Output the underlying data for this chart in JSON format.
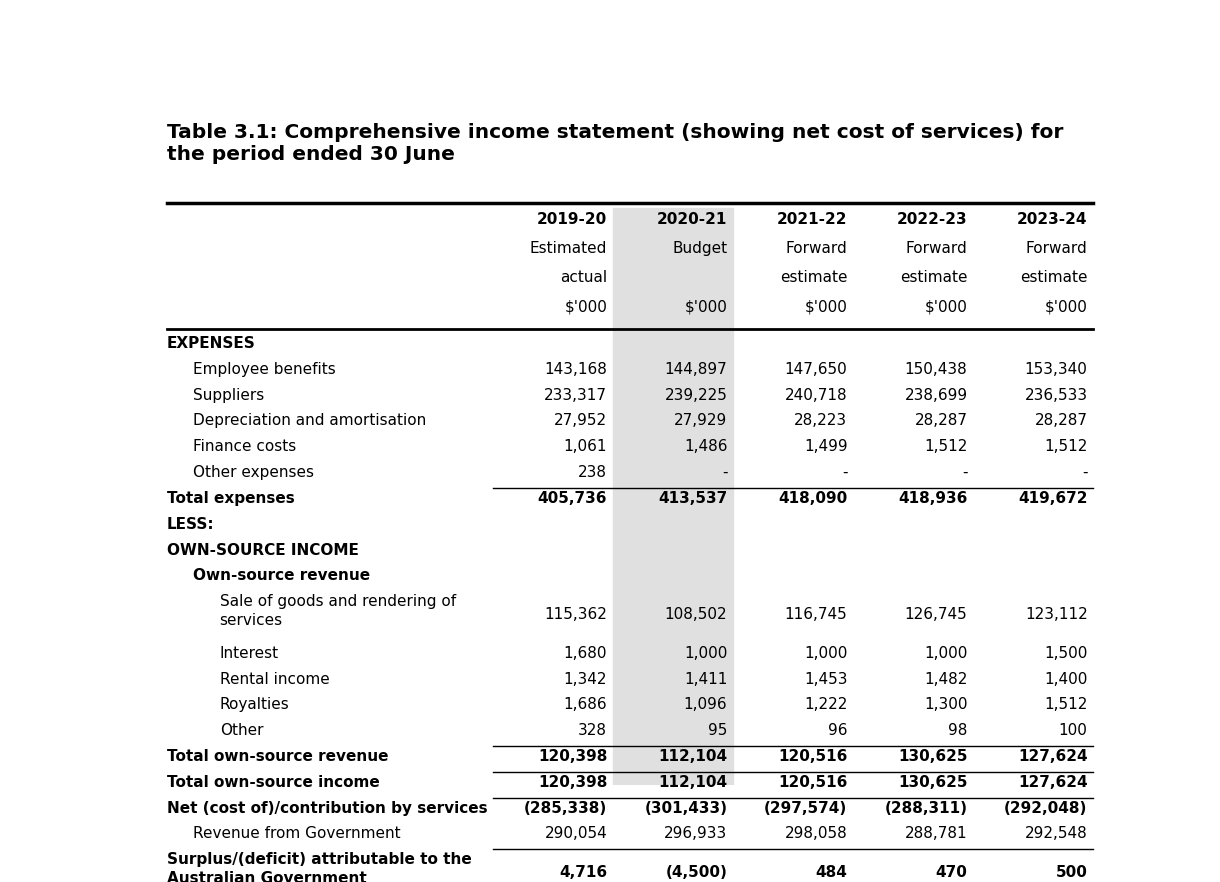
{
  "title": "Table 3.1: Comprehensive income statement (showing net cost of services) for\nthe period ended 30 June",
  "col_headers": [
    [
      "2019-20",
      "2020-21",
      "2021-22",
      "2022-23",
      "2023-24"
    ],
    [
      "Estimated",
      "Budget",
      "Forward",
      "Forward",
      "Forward"
    ],
    [
      "actual",
      "",
      "estimate",
      "estimate",
      "estimate"
    ],
    [
      "$'000",
      "$'000",
      "$'000",
      "$'000",
      "$'000"
    ]
  ],
  "rows": [
    {
      "label": "EXPENSES",
      "values": [
        "",
        "",
        "",
        "",
        ""
      ],
      "style": "bold",
      "indent": 0
    },
    {
      "label": "Employee benefits",
      "values": [
        "143,168",
        "144,897",
        "147,650",
        "150,438",
        "153,340"
      ],
      "style": "normal",
      "indent": 1
    },
    {
      "label": "Suppliers",
      "values": [
        "233,317",
        "239,225",
        "240,718",
        "238,699",
        "236,533"
      ],
      "style": "normal",
      "indent": 1
    },
    {
      "label": "Depreciation and amortisation",
      "values": [
        "27,952",
        "27,929",
        "28,223",
        "28,287",
        "28,287"
      ],
      "style": "normal",
      "indent": 1
    },
    {
      "label": "Finance costs",
      "values": [
        "1,061",
        "1,486",
        "1,499",
        "1,512",
        "1,512"
      ],
      "style": "normal",
      "indent": 1
    },
    {
      "label": "Other expenses",
      "values": [
        "238",
        "-",
        "-",
        "-",
        "-"
      ],
      "style": "normal",
      "indent": 1
    },
    {
      "label": "Total expenses",
      "values": [
        "405,736",
        "413,537",
        "418,090",
        "418,936",
        "419,672"
      ],
      "style": "bold",
      "indent": 0,
      "top_line": true
    },
    {
      "label": "LESS:",
      "values": [
        "",
        "",
        "",
        "",
        ""
      ],
      "style": "bold",
      "indent": 0
    },
    {
      "label": "OWN-SOURCE INCOME",
      "values": [
        "",
        "",
        "",
        "",
        ""
      ],
      "style": "bold",
      "indent": 0
    },
    {
      "label": "Own-source revenue",
      "values": [
        "",
        "",
        "",
        "",
        ""
      ],
      "style": "bold",
      "indent": 1
    },
    {
      "label": "Sale of goods and rendering of\nservices",
      "values": [
        "115,362",
        "108,502",
        "116,745",
        "126,745",
        "123,112"
      ],
      "style": "normal",
      "indent": 2
    },
    {
      "label": "Interest",
      "values": [
        "1,680",
        "1,000",
        "1,000",
        "1,000",
        "1,500"
      ],
      "style": "normal",
      "indent": 2
    },
    {
      "label": "Rental income",
      "values": [
        "1,342",
        "1,411",
        "1,453",
        "1,482",
        "1,400"
      ],
      "style": "normal",
      "indent": 2
    },
    {
      "label": "Royalties",
      "values": [
        "1,686",
        "1,096",
        "1,222",
        "1,300",
        "1,512"
      ],
      "style": "normal",
      "indent": 2
    },
    {
      "label": "Other",
      "values": [
        "328",
        "95",
        "96",
        "98",
        "100"
      ],
      "style": "normal",
      "indent": 2
    },
    {
      "label": "Total own-source revenue",
      "values": [
        "120,398",
        "112,104",
        "120,516",
        "130,625",
        "127,624"
      ],
      "style": "bold",
      "indent": 0,
      "top_line": true
    },
    {
      "label": "Total own-source income",
      "values": [
        "120,398",
        "112,104",
        "120,516",
        "130,625",
        "127,624"
      ],
      "style": "bold",
      "indent": 0,
      "top_line": true
    },
    {
      "label": "Net (cost of)/contribution by services",
      "values": [
        "(285,338)",
        "(301,433)",
        "(297,574)",
        "(288,311)",
        "(292,048)"
      ],
      "style": "bold",
      "indent": 0,
      "top_line": true
    },
    {
      "label": "Revenue from Government",
      "values": [
        "290,054",
        "296,933",
        "298,058",
        "288,781",
        "292,548"
      ],
      "style": "normal",
      "indent": 1
    },
    {
      "label": "Surplus/(deficit) attributable to the\nAustralian Government",
      "values": [
        "4,716",
        "(4,500)",
        "484",
        "470",
        "500"
      ],
      "style": "bold",
      "indent": 0,
      "top_line": true,
      "bottom_line": true
    }
  ],
  "highlight_col": 1,
  "highlight_color": "#e0e0e0",
  "bg_color": "#ffffff",
  "text_color": "#000000",
  "title_fontsize": 14.5,
  "body_fontsize": 11.0
}
